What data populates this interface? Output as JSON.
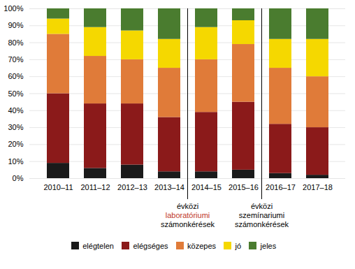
{
  "chart_data": {
    "type": "bar",
    "stacked": true,
    "categories": [
      "2010–11",
      "2011–12",
      "2012–13",
      "2013–14",
      "2014–15",
      "2015–16",
      "2016–17",
      "2017–18"
    ],
    "series": [
      {
        "name": "elégtelen",
        "color": "#1a1a1a",
        "values": [
          9,
          6,
          8,
          4,
          4,
          5,
          3,
          2
        ]
      },
      {
        "name": "elégséges",
        "color": "#8B1A1A",
        "values": [
          41,
          38,
          36,
          32,
          35,
          40,
          29,
          28
        ]
      },
      {
        "name": "közepes",
        "color": "#E07B39",
        "values": [
          35,
          28,
          26,
          29,
          31,
          34,
          33,
          30
        ]
      },
      {
        "name": "jó",
        "color": "#F5D800",
        "values": [
          9,
          17,
          17,
          17,
          19,
          14,
          17,
          22
        ]
      },
      {
        "name": "jeles",
        "color": "#4A7C2F",
        "values": [
          6,
          11,
          13,
          18,
          11,
          7,
          18,
          18
        ]
      }
    ],
    "ylim": [
      0,
      100
    ],
    "yticks": [
      {
        "value": 0,
        "label": "0%"
      },
      {
        "value": 10,
        "label": "10%"
      },
      {
        "value": 20,
        "label": "20%"
      },
      {
        "value": 30,
        "label": "30%"
      },
      {
        "value": 40,
        "label": "40%"
      },
      {
        "value": 50,
        "label": "50%"
      },
      {
        "value": 60,
        "label": "60%"
      },
      {
        "value": 70,
        "label": "70%"
      },
      {
        "value": 80,
        "label": "80%"
      },
      {
        "value": 90,
        "label": "90%"
      },
      {
        "value": 100,
        "label": "100%"
      }
    ],
    "grid": true,
    "legend": "bottom",
    "annotations": [
      {
        "between": [
          "2013–14",
          "2014–15"
        ],
        "lines": [
          {
            "text": "évközi",
            "color": "#000000"
          },
          {
            "text": "laboratóriumi",
            "color": "#C0392B"
          },
          {
            "text": "számonkérések",
            "color": "#000000"
          }
        ]
      },
      {
        "between": [
          "2015–16",
          "2016–17"
        ],
        "lines": [
          {
            "text": "évközi",
            "color": "#000000"
          },
          {
            "text": "szemínariumi",
            "color": "#000000"
          },
          {
            "text": "számonkérések",
            "color": "#000000"
          }
        ]
      }
    ]
  }
}
